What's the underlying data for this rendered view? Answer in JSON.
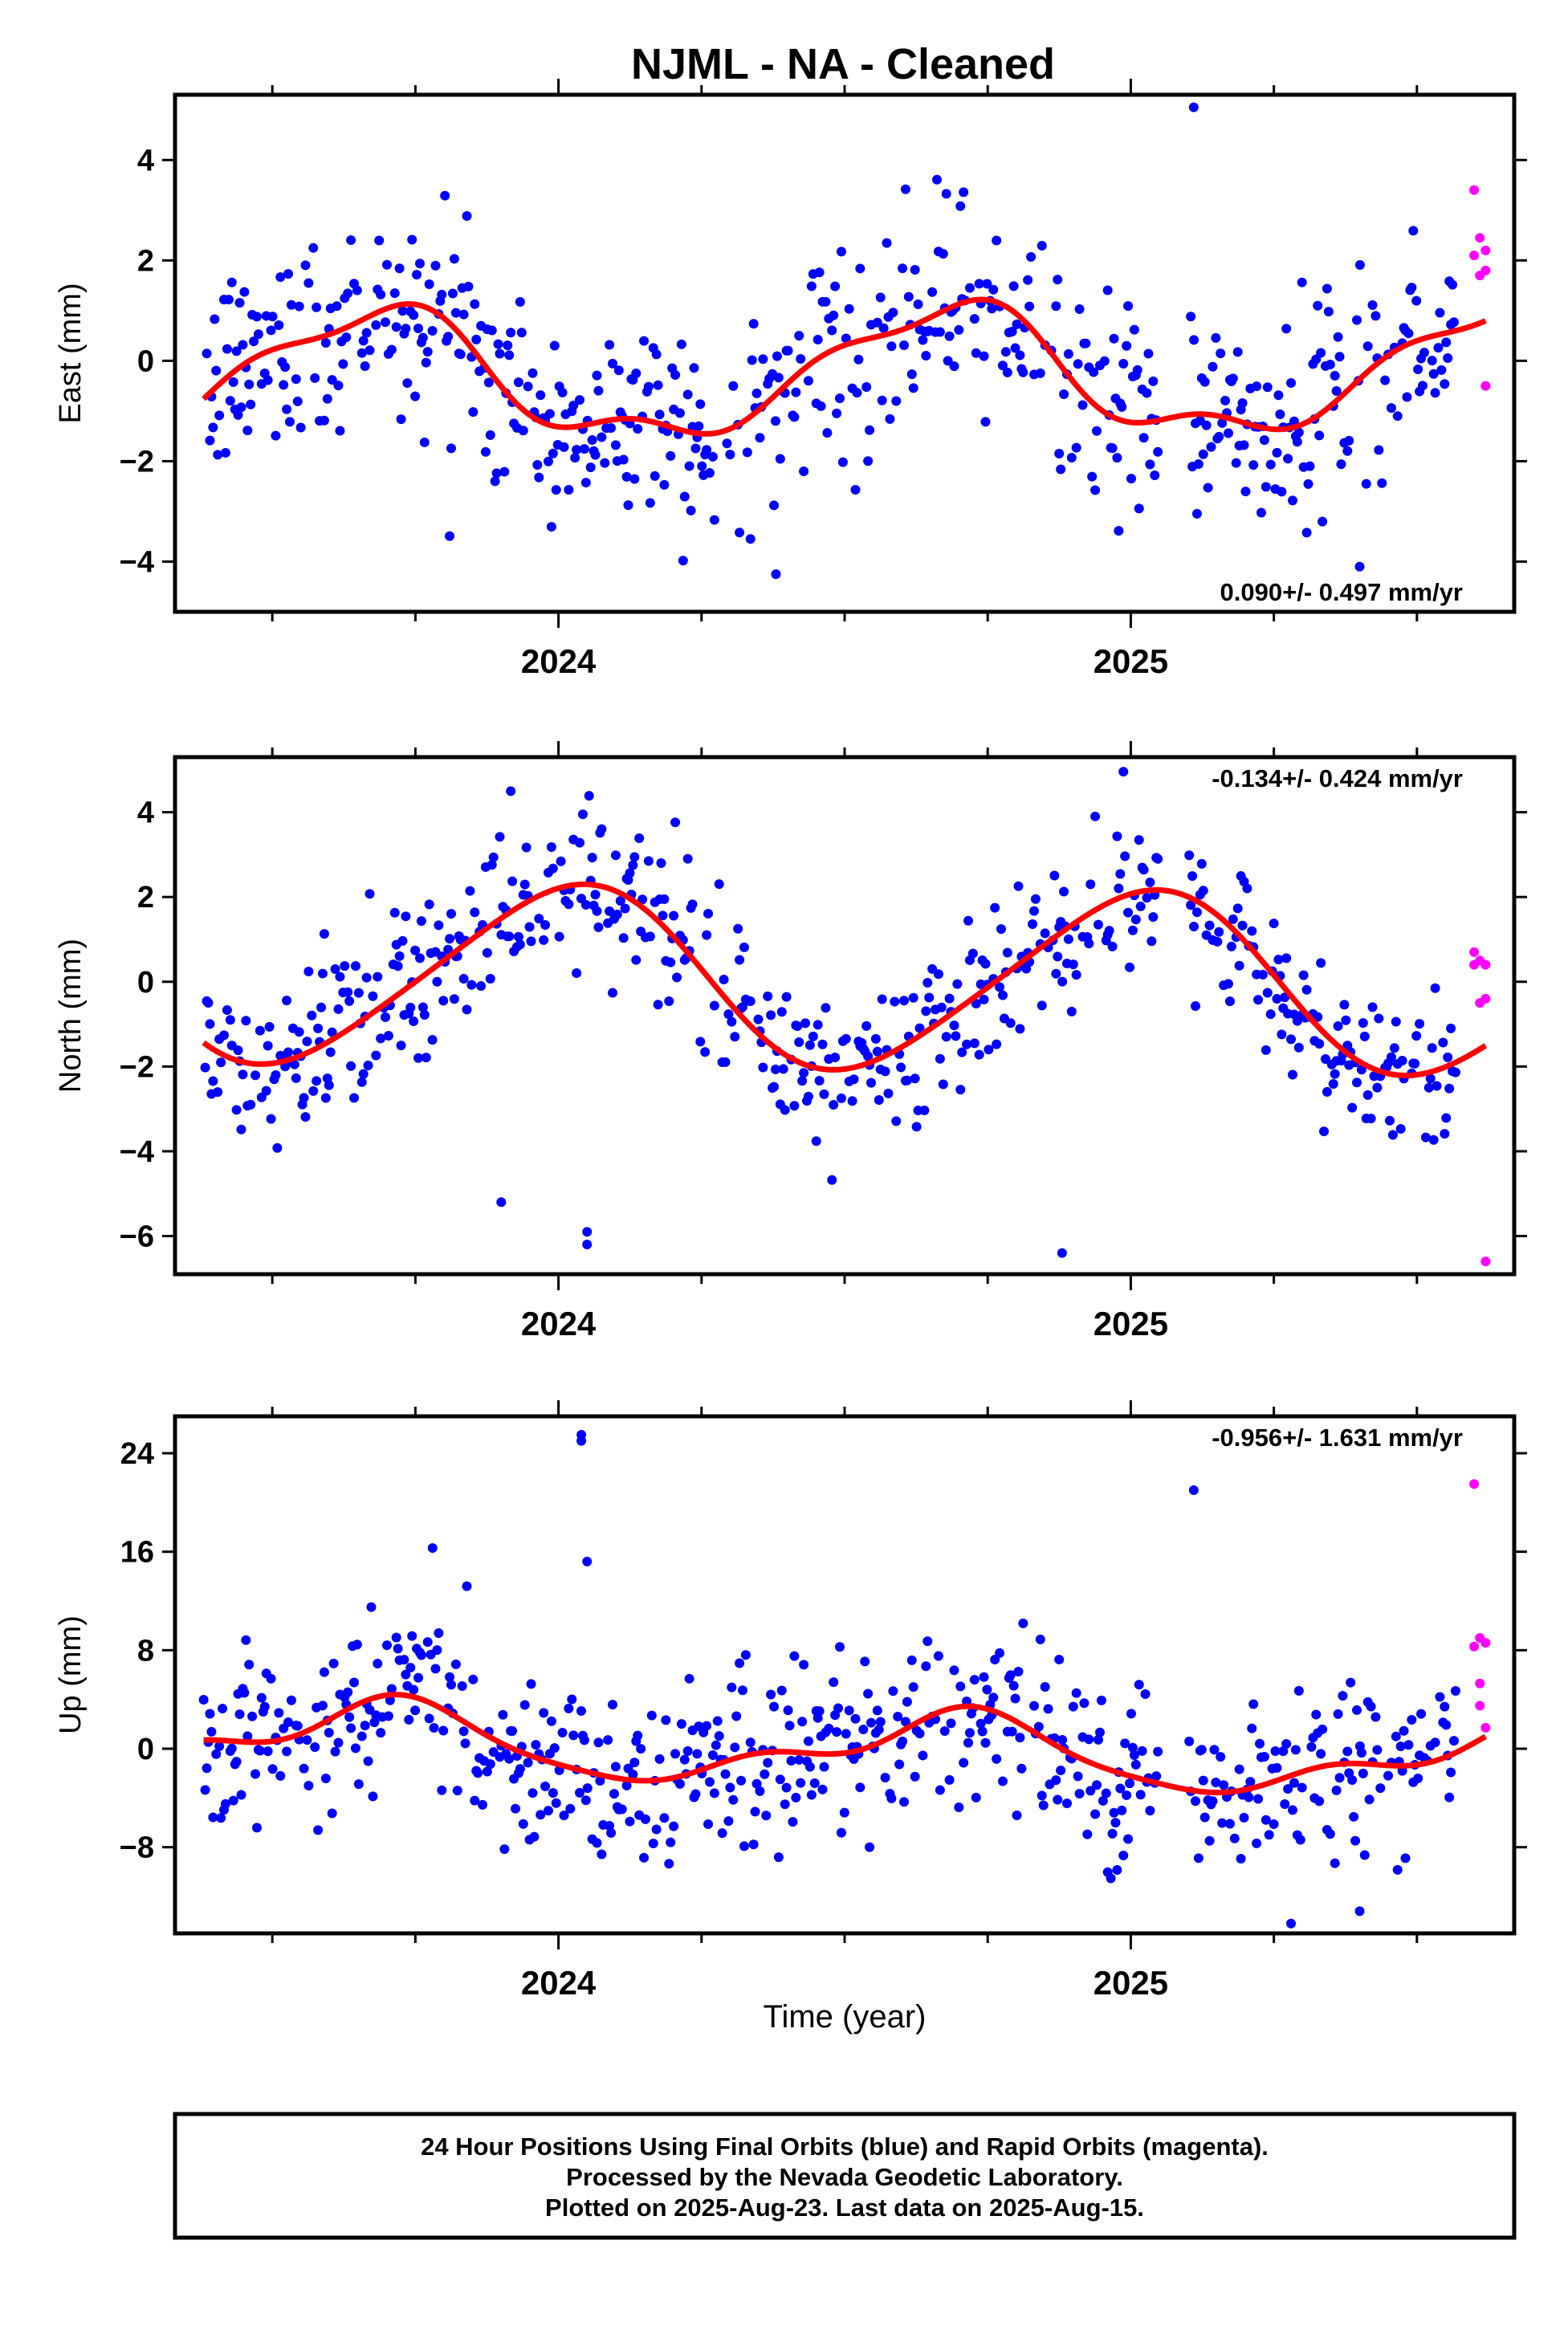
{
  "title": "NJML  - NA - Cleaned",
  "xlabel": "Time (year)",
  "caption": [
    "24 Hour Positions Using Final Orbits (blue) and Rapid Orbits (magenta).",
    "Processed by the Nevada Geodetic Laboratory.",
    "Plotted on 2025-Aug-23. Last data on 2025-Aug-15."
  ],
  "colors": {
    "final": "#0000ff",
    "rapid": "#ff00ff",
    "fit": "#ff0000",
    "frame": "#000000"
  },
  "chart_data": [
    {
      "type": "scatter",
      "ylabel": "East (mm)",
      "rate": "0.090+/- 0.497 mm/yr",
      "xlim": [
        2023.33,
        2025.67
      ],
      "ylim": [
        -5.0,
        5.3
      ],
      "xticks": [
        2024,
        2025
      ],
      "xtick_labels": [
        "2024",
        "2025"
      ],
      "yticks": [
        -4,
        -2,
        0,
        2,
        4
      ],
      "ytick_labels": [
        "−4",
        "−2",
        "0",
        "2",
        "4"
      ],
      "model": {
        "c0": -0.3,
        "c1": 0.09,
        "a1": -1.09,
        "b1": -0.61,
        "a2": 0.1,
        "b2": -0.18,
        "a3": 0.22,
        "b3": -0.18
      },
      "noise": 1.05,
      "final_range": [
        2023.38,
        2025.57
      ],
      "gaps": [
        [
          2025.05,
          2025.1
        ]
      ],
      "outliers": [
        [
          2025.11,
          5.05
        ],
        [
          2024.38,
          -4.25
        ],
        [
          2025.4,
          -4.1
        ]
      ],
      "rapid_points": [
        [
          2025.6,
          3.4
        ],
        [
          2025.6,
          2.1
        ],
        [
          2025.61,
          2.45
        ],
        [
          2025.61,
          1.7
        ],
        [
          2025.62,
          2.2
        ],
        [
          2025.62,
          1.8
        ],
        [
          2025.62,
          -0.5
        ]
      ]
    },
    {
      "type": "scatter",
      "ylabel": "North (mm)",
      "rate": "-0.134+/- 0.424 mm/yr",
      "xlim": [
        2023.33,
        2025.67
      ],
      "ylim": [
        -6.9,
        5.3
      ],
      "xticks": [
        2024,
        2025
      ],
      "xtick_labels": [
        "2024",
        "2025"
      ],
      "yticks": [
        -6,
        -4,
        -2,
        0,
        2,
        4
      ],
      "ytick_labels": [
        "−6",
        "−4",
        "−2",
        "0",
        "2",
        "4"
      ],
      "model": {
        "c0": 0.06,
        "c1": -0.134,
        "a1": 0.18,
        "b1": 2.1,
        "a2": 0.24,
        "b2": -0.02,
        "a3": 0.0,
        "b3": 0.0
      },
      "noise": 0.95,
      "final_range": [
        2023.38,
        2025.57
      ],
      "gaps": [
        [
          2025.05,
          2025.1
        ]
      ],
      "outliers": [
        [
          2024.05,
          -5.9
        ],
        [
          2024.05,
          -6.2
        ],
        [
          2024.88,
          -6.4
        ],
        [
          2023.9,
          -5.2
        ]
      ],
      "rapid_points": [
        [
          2025.6,
          0.7
        ],
        [
          2025.6,
          0.4
        ],
        [
          2025.61,
          -0.5
        ],
        [
          2025.61,
          0.5
        ],
        [
          2025.62,
          0.4
        ],
        [
          2025.62,
          -0.4
        ],
        [
          2025.62,
          -6.6
        ]
      ]
    },
    {
      "type": "scatter",
      "ylabel": "Up (mm)",
      "rate": "-0.956+/- 1.631 mm/yr",
      "xlim": [
        2023.33,
        2025.67
      ],
      "ylim": [
        -15.0,
        27.0
      ],
      "xticks": [
        2024,
        2025
      ],
      "xtick_labels": [
        "2024",
        "2025"
      ],
      "yticks": [
        -8,
        0,
        8,
        16,
        24
      ],
      "ytick_labels": [
        "−8",
        "0",
        "8",
        "16",
        "24"
      ],
      "model": {
        "c0": -0.15,
        "c1": -0.956,
        "a1": -2.4,
        "b1": -1.1,
        "a2": -0.2,
        "b2": -0.9,
        "a3": 0.3,
        "b3": 0.4
      },
      "noise": 3.6,
      "final_range": [
        2023.38,
        2025.57
      ],
      "gaps": [
        [
          2025.05,
          2025.1
        ]
      ],
      "outliers": [
        [
          2024.04,
          25.5
        ],
        [
          2024.04,
          25.0
        ],
        [
          2024.05,
          15.2
        ],
        [
          2025.11,
          21.0
        ],
        [
          2023.78,
          16.3
        ],
        [
          2025.28,
          -14.2
        ],
        [
          2025.4,
          -13.2
        ]
      ],
      "rapid_points": [
        [
          2025.6,
          21.5
        ],
        [
          2025.6,
          8.3
        ],
        [
          2025.61,
          5.3
        ],
        [
          2025.61,
          9.0
        ],
        [
          2025.61,
          3.5
        ],
        [
          2025.62,
          8.6
        ],
        [
          2025.62,
          1.7
        ]
      ]
    }
  ]
}
